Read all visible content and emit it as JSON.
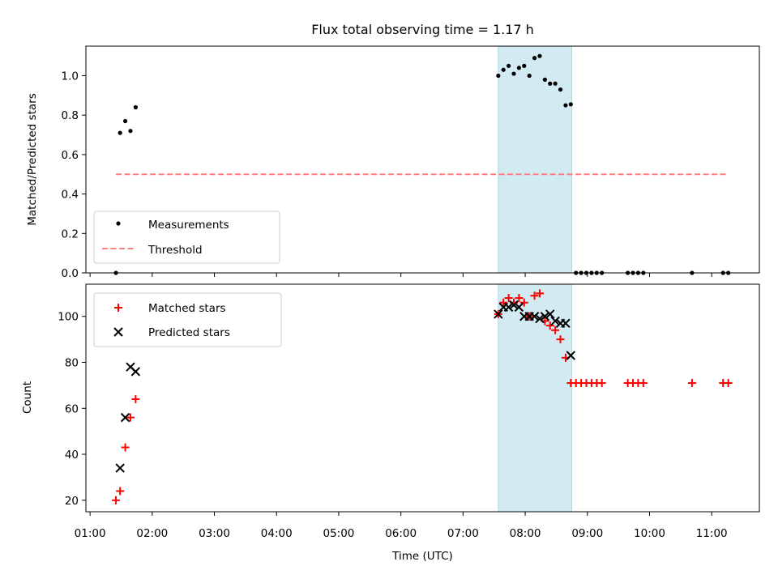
{
  "chart_data": [
    {
      "type": "scatter",
      "title": "Flux total observing time = 1.17 h",
      "xlabel": "",
      "ylabel": "Matched/Predicted stars",
      "ylim": [
        0.0,
        1.15
      ],
      "yticks": [
        "0.0",
        "0.2",
        "0.4",
        "0.6",
        "0.8",
        "1.0"
      ],
      "x_range": [
        "00:56",
        "11:46"
      ],
      "highlight_span": [
        "07:34",
        "08:45"
      ],
      "highlight_color": "#add8e6",
      "legend_position": "lower-left",
      "series": [
        {
          "name": "Measurements",
          "marker": "dot",
          "color": "#000000",
          "points": [
            [
              "01:25",
              0.0
            ],
            [
              "01:29",
              0.71
            ],
            [
              "01:34",
              0.77
            ],
            [
              "01:39",
              0.72
            ],
            [
              "01:44",
              0.84
            ],
            [
              "07:34",
              1.0
            ],
            [
              "07:39",
              1.03
            ],
            [
              "07:44",
              1.05
            ],
            [
              "07:49",
              1.01
            ],
            [
              "07:54",
              1.04
            ],
            [
              "07:59",
              1.05
            ],
            [
              "08:04",
              1.0
            ],
            [
              "08:09",
              1.09
            ],
            [
              "08:14",
              1.1
            ],
            [
              "08:19",
              0.98
            ],
            [
              "08:24",
              0.96
            ],
            [
              "08:29",
              0.96
            ],
            [
              "08:34",
              0.93
            ],
            [
              "08:39",
              0.85
            ],
            [
              "08:44",
              0.855
            ],
            [
              "08:49",
              0.0
            ],
            [
              "08:54",
              0.0
            ],
            [
              "08:59",
              0.0
            ],
            [
              "09:04",
              0.0
            ],
            [
              "09:09",
              0.0
            ],
            [
              "09:14",
              0.0
            ],
            [
              "09:39",
              0.0
            ],
            [
              "09:44",
              0.0
            ],
            [
              "09:49",
              0.0
            ],
            [
              "09:54",
              0.0
            ],
            [
              "10:41",
              0.0
            ],
            [
              "11:11",
              0.0
            ],
            [
              "11:16",
              0.0
            ]
          ]
        },
        {
          "name": "Threshold",
          "style": "dashed-line",
          "color": "#ff7f7f",
          "points": [
            [
              "01:25",
              0.5
            ],
            [
              "11:15",
              0.5
            ]
          ]
        }
      ]
    },
    {
      "type": "scatter",
      "xlabel": "Time (UTC)",
      "ylabel": "Count",
      "ylim": [
        15,
        114
      ],
      "yticks": [
        "20",
        "40",
        "60",
        "80",
        "100"
      ],
      "x_range": [
        "00:56",
        "11:46"
      ],
      "xticks": [
        "01:00",
        "02:00",
        "03:00",
        "04:00",
        "05:00",
        "06:00",
        "07:00",
        "08:00",
        "09:00",
        "10:00",
        "11:00"
      ],
      "highlight_span": [
        "07:34",
        "08:45"
      ],
      "highlight_color": "#add8e6",
      "legend_position": "upper-left",
      "series": [
        {
          "name": "Matched stars",
          "marker": "plus",
          "color": "#ff0000",
          "points": [
            [
              "01:25",
              20
            ],
            [
              "01:29",
              24
            ],
            [
              "01:34",
              43
            ],
            [
              "01:39",
              56
            ],
            [
              "01:44",
              64
            ],
            [
              "07:34",
              101
            ],
            [
              "07:39",
              106
            ],
            [
              "07:44",
              108
            ],
            [
              "07:49",
              106
            ],
            [
              "07:54",
              108
            ],
            [
              "07:59",
              106
            ],
            [
              "08:04",
              100
            ],
            [
              "08:09",
              109
            ],
            [
              "08:14",
              110
            ],
            [
              "08:19",
              98
            ],
            [
              "08:24",
              96
            ],
            [
              "08:29",
              94
            ],
            [
              "08:34",
              90
            ],
            [
              "08:39",
              82
            ],
            [
              "08:44",
              71
            ],
            [
              "08:49",
              71
            ],
            [
              "08:54",
              71
            ],
            [
              "08:59",
              71
            ],
            [
              "09:04",
              71
            ],
            [
              "09:09",
              71
            ],
            [
              "09:14",
              71
            ],
            [
              "09:39",
              71
            ],
            [
              "09:44",
              71
            ],
            [
              "09:49",
              71
            ],
            [
              "09:54",
              71
            ],
            [
              "10:41",
              71
            ],
            [
              "11:11",
              71
            ],
            [
              "11:16",
              71
            ]
          ]
        },
        {
          "name": "Predicted stars",
          "marker": "x",
          "color": "#000000",
          "points": [
            [
              "01:29",
              34
            ],
            [
              "01:34",
              56
            ],
            [
              "01:39",
              78
            ],
            [
              "01:44",
              76
            ],
            [
              "07:34",
              101
            ],
            [
              "07:39",
              104
            ],
            [
              "07:44",
              104
            ],
            [
              "07:49",
              105
            ],
            [
              "07:54",
              104
            ],
            [
              "07:59",
              100
            ],
            [
              "08:04",
              100
            ],
            [
              "08:09",
              100
            ],
            [
              "08:14",
              99
            ],
            [
              "08:19",
              100
            ],
            [
              "08:24",
              101
            ],
            [
              "08:29",
              98
            ],
            [
              "08:34",
              97
            ],
            [
              "08:39",
              97
            ],
            [
              "08:44",
              83
            ]
          ]
        }
      ]
    }
  ]
}
